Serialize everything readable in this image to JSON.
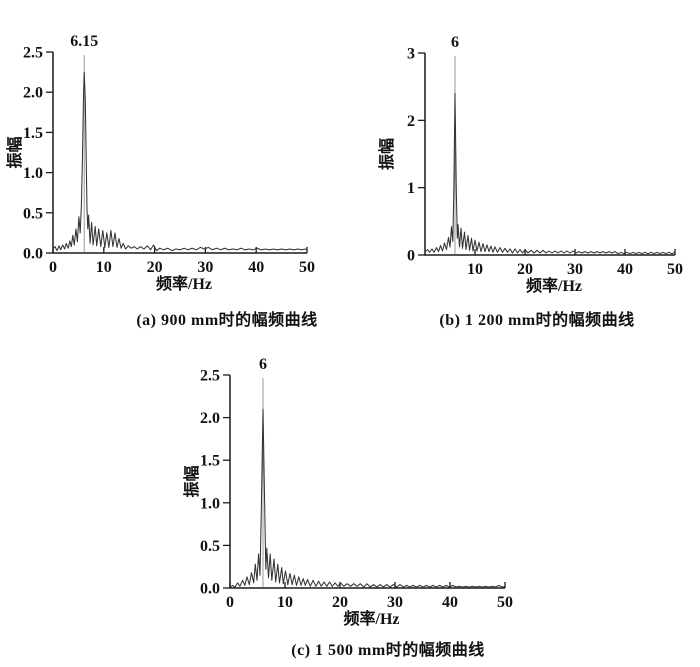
{
  "figure": {
    "background": "#ffffff",
    "text_color": "#111111",
    "axis_color": "#1a1a1a",
    "curve_color": "#333333",
    "marker_color": "#9a9a9a"
  },
  "chart_data": [
    {
      "id": "a",
      "type": "line",
      "title": "(a) 900 mm时的幅频曲线",
      "xlabel": "频率/Hz",
      "ylabel": "振幅",
      "xlim": [
        0,
        50
      ],
      "ylim": [
        0,
        2.5
      ],
      "grid": false,
      "xticks": {
        "values": [
          0,
          10,
          20,
          30,
          40,
          50
        ],
        "labels": [
          "0",
          "10",
          "20",
          "30",
          "40",
          "50"
        ]
      },
      "yticks": {
        "values": [
          0,
          0.5,
          1,
          1.5,
          2,
          2.5
        ],
        "labels": [
          "0.0",
          "0.5",
          "1.0",
          "1.5",
          "2.0",
          "2.5"
        ]
      },
      "peak": {
        "x": 6.15,
        "y": 2.25,
        "label": "6.15"
      },
      "points": [
        [
          0,
          0.05
        ],
        [
          0.4,
          0.08
        ],
        [
          0.8,
          0.03
        ],
        [
          1.2,
          0.09
        ],
        [
          1.5,
          0.04
        ],
        [
          1.9,
          0.1
        ],
        [
          2.3,
          0.05
        ],
        [
          2.6,
          0.12
        ],
        [
          3,
          0.06
        ],
        [
          3.3,
          0.15
        ],
        [
          3.6,
          0.08
        ],
        [
          3.9,
          0.22
        ],
        [
          4.2,
          0.1
        ],
        [
          4.5,
          0.3
        ],
        [
          4.8,
          0.14
        ],
        [
          5.1,
          0.45
        ],
        [
          5.35,
          0.25
        ],
        [
          5.6,
          0.6
        ],
        [
          5.8,
          1.2
        ],
        [
          6,
          1.95
        ],
        [
          6.15,
          2.25
        ],
        [
          6.35,
          1.9
        ],
        [
          6.55,
          1.1
        ],
        [
          6.7,
          0.55
        ],
        [
          6.85,
          0.3
        ],
        [
          7,
          0.47
        ],
        [
          7.3,
          0.12
        ],
        [
          7.6,
          0.38
        ],
        [
          7.9,
          0.1
        ],
        [
          8.3,
          0.33
        ],
        [
          8.6,
          0.09
        ],
        [
          9,
          0.3
        ],
        [
          9.4,
          0.08
        ],
        [
          9.8,
          0.28
        ],
        [
          10.2,
          0.07
        ],
        [
          10.6,
          0.25
        ],
        [
          11,
          0.07
        ],
        [
          11.4,
          0.28
        ],
        [
          11.8,
          0.08
        ],
        [
          12.2,
          0.25
        ],
        [
          12.6,
          0.07
        ],
        [
          13,
          0.18
        ],
        [
          13.4,
          0.06
        ],
        [
          13.8,
          0.12
        ],
        [
          14.3,
          0.05
        ],
        [
          14.8,
          0.09
        ],
        [
          15.4,
          0.06
        ],
        [
          16,
          0.08
        ],
        [
          16.6,
          0.05
        ],
        [
          17.2,
          0.08
        ],
        [
          17.9,
          0.05
        ],
        [
          18.6,
          0.09
        ],
        [
          19.2,
          0.04
        ],
        [
          19.8,
          0.1
        ],
        [
          20.4,
          0.03
        ],
        [
          21,
          0.06
        ],
        [
          21.8,
          0.04
        ],
        [
          22.6,
          0.06
        ],
        [
          23.4,
          0.03
        ],
        [
          24.2,
          0.05
        ],
        [
          25,
          0.04
        ],
        [
          25.8,
          0.06
        ],
        [
          26.6,
          0.04
        ],
        [
          27.4,
          0.06
        ],
        [
          28.2,
          0.04
        ],
        [
          29,
          0.07
        ],
        [
          29.8,
          0.05
        ],
        [
          30.6,
          0.07
        ],
        [
          31.4,
          0.04
        ],
        [
          32.2,
          0.06
        ],
        [
          33,
          0.04
        ],
        [
          33.8,
          0.06
        ],
        [
          34.6,
          0.04
        ],
        [
          35.4,
          0.05
        ],
        [
          36.2,
          0.04
        ],
        [
          37,
          0.06
        ],
        [
          37.8,
          0.04
        ],
        [
          38.6,
          0.05
        ],
        [
          39.4,
          0.04
        ],
        [
          40.2,
          0.06
        ],
        [
          41,
          0.04
        ],
        [
          41.8,
          0.05
        ],
        [
          42.6,
          0.04
        ],
        [
          43.4,
          0.05
        ],
        [
          44.2,
          0.04
        ],
        [
          45,
          0.05
        ],
        [
          45.8,
          0.04
        ],
        [
          46.6,
          0.05
        ],
        [
          47.4,
          0.04
        ],
        [
          48.2,
          0.05
        ],
        [
          49,
          0.04
        ],
        [
          49.6,
          0.05
        ],
        [
          50,
          0.04
        ]
      ]
    },
    {
      "id": "b",
      "type": "line",
      "title": "(b) 1 200 mm时的幅频曲线",
      "xlabel": "频率/Hz",
      "ylabel": "振幅",
      "xlim": [
        0,
        50
      ],
      "ylim": [
        0,
        3
      ],
      "grid": false,
      "xticks": {
        "values": [
          10,
          20,
          30,
          40,
          50
        ],
        "labels": [
          "10",
          "20",
          "30",
          "40",
          "50"
        ]
      },
      "yticks": {
        "values": [
          0,
          1,
          2,
          3
        ],
        "labels": [
          "0",
          "1",
          "2",
          "3"
        ]
      },
      "peak": {
        "x": 6,
        "y": 2.4,
        "label": "6"
      },
      "points": [
        [
          0,
          0.05
        ],
        [
          0.5,
          0.08
        ],
        [
          0.9,
          0.04
        ],
        [
          1.4,
          0.09
        ],
        [
          1.8,
          0.04
        ],
        [
          2.3,
          0.11
        ],
        [
          2.7,
          0.05
        ],
        [
          3.1,
          0.14
        ],
        [
          3.5,
          0.06
        ],
        [
          3.9,
          0.18
        ],
        [
          4.3,
          0.08
        ],
        [
          4.7,
          0.26
        ],
        [
          5,
          0.12
        ],
        [
          5.3,
          0.42
        ],
        [
          5.55,
          0.2
        ],
        [
          5.75,
          0.9
        ],
        [
          6,
          2.4
        ],
        [
          6.25,
          0.95
        ],
        [
          6.45,
          0.25
        ],
        [
          6.6,
          0.45
        ],
        [
          6.9,
          0.12
        ],
        [
          7.2,
          0.4
        ],
        [
          7.5,
          0.1
        ],
        [
          7.9,
          0.34
        ],
        [
          8.2,
          0.08
        ],
        [
          8.6,
          0.29
        ],
        [
          8.9,
          0.07
        ],
        [
          9.3,
          0.25
        ],
        [
          9.6,
          0.06
        ],
        [
          10,
          0.22
        ],
        [
          10.4,
          0.06
        ],
        [
          10.8,
          0.19
        ],
        [
          11.2,
          0.05
        ],
        [
          11.6,
          0.17
        ],
        [
          12,
          0.05
        ],
        [
          12.4,
          0.15
        ],
        [
          12.8,
          0.05
        ],
        [
          13.2,
          0.13
        ],
        [
          13.6,
          0.04
        ],
        [
          14,
          0.12
        ],
        [
          14.5,
          0.04
        ],
        [
          15,
          0.11
        ],
        [
          15.5,
          0.04
        ],
        [
          16,
          0.1
        ],
        [
          16.5,
          0.04
        ],
        [
          17,
          0.09
        ],
        [
          17.5,
          0.03
        ],
        [
          18,
          0.09
        ],
        [
          18.5,
          0.03
        ],
        [
          19,
          0.08
        ],
        [
          19.5,
          0.03
        ],
        [
          20,
          0.08
        ],
        [
          20.6,
          0.03
        ],
        [
          21.2,
          0.07
        ],
        [
          21.8,
          0.03
        ],
        [
          22.4,
          0.07
        ],
        [
          23,
          0.03
        ],
        [
          23.6,
          0.07
        ],
        [
          24.2,
          0.03
        ],
        [
          24.8,
          0.06
        ],
        [
          25.4,
          0.03
        ],
        [
          26,
          0.06
        ],
        [
          26.6,
          0.03
        ],
        [
          27.2,
          0.06
        ],
        [
          27.8,
          0.03
        ],
        [
          28.4,
          0.06
        ],
        [
          29,
          0.03
        ],
        [
          29.6,
          0.06
        ],
        [
          30.2,
          0.03
        ],
        [
          30.8,
          0.05
        ],
        [
          31.4,
          0.03
        ],
        [
          32,
          0.05
        ],
        [
          32.6,
          0.03
        ],
        [
          33.2,
          0.05
        ],
        [
          33.8,
          0.03
        ],
        [
          34.4,
          0.05
        ],
        [
          35,
          0.03
        ],
        [
          35.6,
          0.05
        ],
        [
          36.2,
          0.03
        ],
        [
          36.8,
          0.05
        ],
        [
          37.4,
          0.03
        ],
        [
          38,
          0.05
        ],
        [
          38.6,
          0.02
        ],
        [
          39.2,
          0.04
        ],
        [
          39.8,
          0.02
        ],
        [
          40.4,
          0.04
        ],
        [
          41,
          0.02
        ],
        [
          41.6,
          0.04
        ],
        [
          42.2,
          0.02
        ],
        [
          42.8,
          0.04
        ],
        [
          43.4,
          0.02
        ],
        [
          44,
          0.04
        ],
        [
          44.6,
          0.02
        ],
        [
          45.2,
          0.04
        ],
        [
          45.8,
          0.02
        ],
        [
          46.4,
          0.04
        ],
        [
          47,
          0.02
        ],
        [
          47.6,
          0.04
        ],
        [
          48.2,
          0.02
        ],
        [
          48.8,
          0.04
        ],
        [
          49.4,
          0.02
        ],
        [
          50,
          0.04
        ]
      ]
    },
    {
      "id": "c",
      "type": "line",
      "title": "(c) 1 500 mm时的幅频曲线",
      "xlabel": "频率/Hz",
      "ylabel": "振幅",
      "xlim": [
        0,
        50
      ],
      "ylim": [
        0,
        2.5
      ],
      "grid": false,
      "xticks": {
        "values": [
          0,
          10,
          20,
          30,
          40,
          50
        ],
        "labels": [
          "0",
          "10",
          "20",
          "30",
          "40",
          "50"
        ]
      },
      "yticks": {
        "values": [
          0,
          0.5,
          1,
          1.5,
          2,
          2.5
        ],
        "labels": [
          "0.0",
          "0.5",
          "1.0",
          "1.5",
          "2.0",
          "2.5"
        ]
      },
      "peak": {
        "x": 6,
        "y": 2.1,
        "label": "6"
      },
      "points": [
        [
          0,
          0.01
        ],
        [
          0.5,
          0.03
        ],
        [
          0.9,
          0.01
        ],
        [
          1.4,
          0.06
        ],
        [
          1.8,
          0.02
        ],
        [
          2.3,
          0.09
        ],
        [
          2.7,
          0.03
        ],
        [
          3.1,
          0.13
        ],
        [
          3.5,
          0.04
        ],
        [
          3.9,
          0.18
        ],
        [
          4.3,
          0.06
        ],
        [
          4.6,
          0.28
        ],
        [
          4.9,
          0.09
        ],
        [
          5.2,
          0.4
        ],
        [
          5.45,
          0.15
        ],
        [
          5.7,
          0.9
        ],
        [
          6,
          2.1
        ],
        [
          6.3,
          0.95
        ],
        [
          6.5,
          0.22
        ],
        [
          6.7,
          0.47
        ],
        [
          7,
          0.12
        ],
        [
          7.3,
          0.4
        ],
        [
          7.6,
          0.09
        ],
        [
          8,
          0.34
        ],
        [
          8.3,
          0.07
        ],
        [
          8.7,
          0.28
        ],
        [
          9,
          0.06
        ],
        [
          9.4,
          0.24
        ],
        [
          9.7,
          0.05
        ],
        [
          10.1,
          0.2
        ],
        [
          10.5,
          0.04
        ],
        [
          10.9,
          0.17
        ],
        [
          11.3,
          0.04
        ],
        [
          11.7,
          0.15
        ],
        [
          12.1,
          0.03
        ],
        [
          12.5,
          0.13
        ],
        [
          12.9,
          0.03
        ],
        [
          13.3,
          0.11
        ],
        [
          13.7,
          0.03
        ],
        [
          14.1,
          0.1
        ],
        [
          14.6,
          0.02
        ],
        [
          15.1,
          0.09
        ],
        [
          15.6,
          0.02
        ],
        [
          16.1,
          0.08
        ],
        [
          16.6,
          0.02
        ],
        [
          17.1,
          0.07
        ],
        [
          17.6,
          0.02
        ],
        [
          18.1,
          0.07
        ],
        [
          18.6,
          0.02
        ],
        [
          19.1,
          0.06
        ],
        [
          19.6,
          0.02
        ],
        [
          20.1,
          0.06
        ],
        [
          20.7,
          0.02
        ],
        [
          21.3,
          0.05
        ],
        [
          21.9,
          0.02
        ],
        [
          22.5,
          0.05
        ],
        [
          23.1,
          0.02
        ],
        [
          23.7,
          0.05
        ],
        [
          24.3,
          0.01
        ],
        [
          24.9,
          0.05
        ],
        [
          25.5,
          0.01
        ],
        [
          26.1,
          0.04
        ],
        [
          26.7,
          0.01
        ],
        [
          27.3,
          0.04
        ],
        [
          27.9,
          0.01
        ],
        [
          28.5,
          0.04
        ],
        [
          29.1,
          0.01
        ],
        [
          29.7,
          0.04
        ],
        [
          30.3,
          0.01
        ],
        [
          30.9,
          0.04
        ],
        [
          31.5,
          0.01
        ],
        [
          32.1,
          0.03
        ],
        [
          32.7,
          0.01
        ],
        [
          33.3,
          0.03
        ],
        [
          33.9,
          0.01
        ],
        [
          34.5,
          0.03
        ],
        [
          35.1,
          0.01
        ],
        [
          35.7,
          0.03
        ],
        [
          36.3,
          0.01
        ],
        [
          36.9,
          0.03
        ],
        [
          37.5,
          0.01
        ],
        [
          38.1,
          0.03
        ],
        [
          38.7,
          0.01
        ],
        [
          39.3,
          0.03
        ],
        [
          39.9,
          0.01
        ],
        [
          40.5,
          0.03
        ],
        [
          41.1,
          0.01
        ],
        [
          41.7,
          0.02
        ],
        [
          42.3,
          0.01
        ],
        [
          42.9,
          0.02
        ],
        [
          43.5,
          0.01
        ],
        [
          44.1,
          0.02
        ],
        [
          44.7,
          0.01
        ],
        [
          45.3,
          0.02
        ],
        [
          45.9,
          0.01
        ],
        [
          46.5,
          0.02
        ],
        [
          47.1,
          0.01
        ],
        [
          47.7,
          0.02
        ],
        [
          48.3,
          0.01
        ],
        [
          48.9,
          0.03
        ],
        [
          49.5,
          0.01
        ],
        [
          50,
          0.02
        ]
      ]
    }
  ]
}
